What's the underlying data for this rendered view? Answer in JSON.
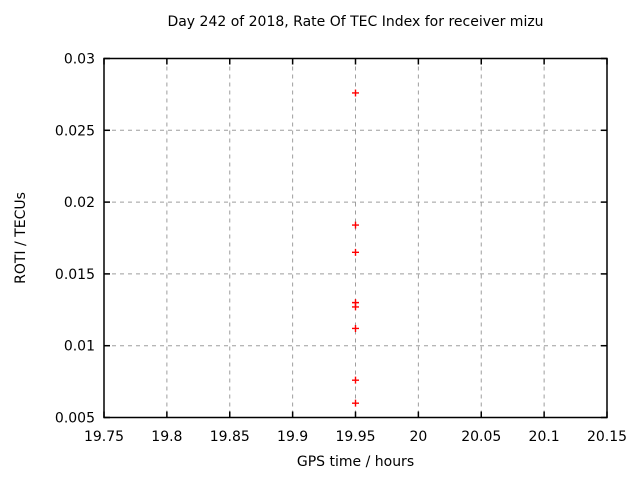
{
  "window": {
    "background": "#ffffff"
  },
  "colors": {
    "background": "#ffffff",
    "axis": "#000000",
    "grid": "#9e9e9e",
    "text": "#000000",
    "marker": "#ff0000"
  },
  "chart_data": {
    "type": "scatter",
    "title": "Day 242 of 2018, Rate Of TEC Index for receiver mizu",
    "xlabel": "GPS time / hours",
    "ylabel": "ROTI / TECUs",
    "xlim": [
      19.75,
      20.15
    ],
    "ylim": [
      0.005,
      0.03
    ],
    "grid": true,
    "legend": "none",
    "marker_style": "plus",
    "xticks": [
      {
        "value": 19.75,
        "label": "19.75"
      },
      {
        "value": 19.8,
        "label": "19.8"
      },
      {
        "value": 19.85,
        "label": "19.85"
      },
      {
        "value": 19.9,
        "label": "19.9"
      },
      {
        "value": 19.95,
        "label": "19.95"
      },
      {
        "value": 20,
        "label": "20"
      },
      {
        "value": 20.05,
        "label": "20.05"
      },
      {
        "value": 20.1,
        "label": "20.1"
      },
      {
        "value": 20.15,
        "label": "20.15"
      }
    ],
    "yticks": [
      {
        "value": 0.005,
        "label": "0.005"
      },
      {
        "value": 0.01,
        "label": "0.01"
      },
      {
        "value": 0.015,
        "label": "0.015"
      },
      {
        "value": 0.02,
        "label": "0.02"
      },
      {
        "value": 0.025,
        "label": "0.025"
      },
      {
        "value": 0.03,
        "label": "0.03"
      }
    ],
    "series": [
      {
        "name": "roti",
        "marker": "plus",
        "color": "#ff0000",
        "points": [
          {
            "x": 19.95,
            "y": 0.0276
          },
          {
            "x": 19.95,
            "y": 0.0184
          },
          {
            "x": 19.95,
            "y": 0.0165
          },
          {
            "x": 19.95,
            "y": 0.013
          },
          {
            "x": 19.95,
            "y": 0.0127
          },
          {
            "x": 19.95,
            "y": 0.0112
          },
          {
            "x": 19.95,
            "y": 0.0076
          },
          {
            "x": 19.95,
            "y": 0.006
          }
        ]
      }
    ]
  }
}
